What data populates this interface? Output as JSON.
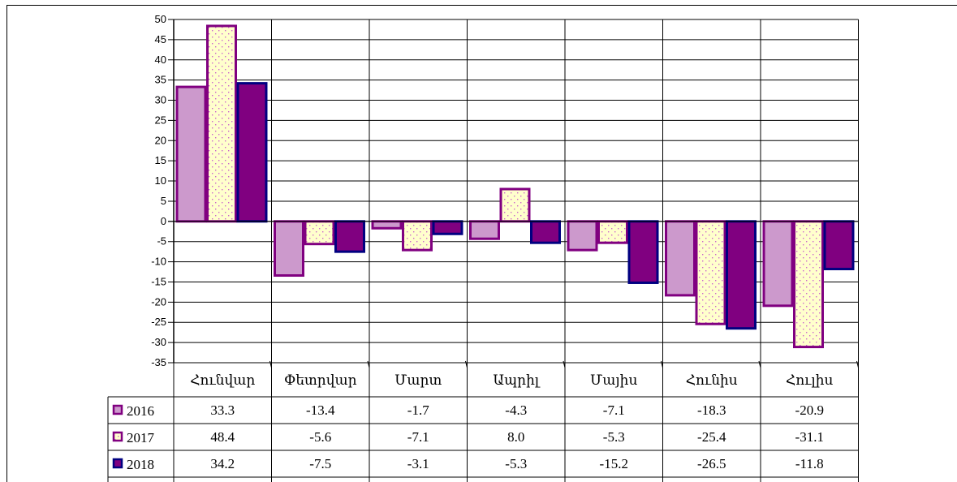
{
  "chart_data": {
    "type": "bar",
    "categories": [
      "Հունվար",
      "Փետրվար",
      "Մարտ",
      "Ապրիլ",
      "Մայիս",
      "Հունիս",
      "Հուլիս"
    ],
    "series": [
      {
        "name": "2016",
        "values": [
          33.3,
          -13.4,
          -1.7,
          -4.3,
          -7.1,
          -18.3,
          -20.9
        ],
        "labels": [
          "33.3",
          "-13.4",
          "-1.7",
          "-4.3",
          "-7.1",
          "-18.3",
          "-20.9"
        ],
        "color": "#cc99cc",
        "pattern": "solid"
      },
      {
        "name": "2017",
        "values": [
          48.4,
          -5.6,
          -7.1,
          8.0,
          -5.3,
          -25.4,
          -31.1
        ],
        "labels": [
          "48.4",
          "-5.6",
          "-7.1",
          "8.0",
          "-5.3",
          "-25.4",
          "-31.1"
        ],
        "color": "#ffffcc",
        "pattern": "dotted"
      },
      {
        "name": "2018",
        "values": [
          34.2,
          -7.5,
          -3.1,
          -5.3,
          -15.2,
          -26.5,
          -11.8
        ],
        "labels": [
          "34.2",
          "-7.5",
          "-3.1",
          "-5.3",
          "-15.2",
          "-26.5",
          "-11.8"
        ],
        "color": "#800080",
        "pattern": "solid"
      }
    ],
    "ylim": [
      -35,
      50
    ],
    "yticks": [
      "50",
      "45",
      "40",
      "35",
      "30",
      "25",
      "20",
      "15",
      "10",
      "5",
      "0",
      "-5",
      "-10",
      "-15",
      "-20",
      "-25",
      "-30",
      "-35"
    ],
    "grid": true,
    "legend": "data-table-left",
    "title": "",
    "xlabel": "",
    "ylabel": ""
  },
  "colors": {
    "outline_2016": "#800080",
    "outline_2017": "#800080",
    "outline_2018": "#000080",
    "pattern_dot": "#cc66cc",
    "grid": "#000000"
  }
}
